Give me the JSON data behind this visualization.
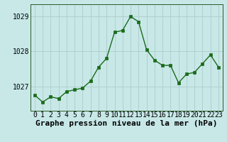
{
  "x": [
    0,
    1,
    2,
    3,
    4,
    5,
    6,
    7,
    8,
    9,
    10,
    11,
    12,
    13,
    14,
    15,
    16,
    17,
    18,
    19,
    20,
    21,
    22,
    23
  ],
  "y": [
    1026.75,
    1026.55,
    1026.7,
    1026.65,
    1026.85,
    1026.9,
    1026.95,
    1027.15,
    1027.55,
    1027.8,
    1028.55,
    1028.6,
    1029.0,
    1028.85,
    1028.05,
    1027.75,
    1027.6,
    1027.6,
    1027.1,
    1027.35,
    1027.4,
    1027.65,
    1027.9,
    1027.55
  ],
  "line_color": "#1a6b1a",
  "marker_color": "#1a6b1a",
  "bg_color": "#c8e8e8",
  "grid_color": "#b0d0d0",
  "xlabel": "Graphe pression niveau de la mer (hPa)",
  "xlabel_fontsize": 8,
  "tick_fontsize": 7,
  "yticks": [
    1027,
    1028,
    1029
  ],
  "ylim": [
    1026.3,
    1029.35
  ],
  "xlim": [
    -0.5,
    23.5
  ],
  "xticks": [
    0,
    1,
    2,
    3,
    4,
    5,
    6,
    7,
    8,
    9,
    10,
    11,
    12,
    13,
    14,
    15,
    16,
    17,
    18,
    19,
    20,
    21,
    22,
    23
  ],
  "xtick_labels": [
    "0",
    "1",
    "2",
    "3",
    "4",
    "5",
    "6",
    "7",
    "8",
    "9",
    "10",
    "11",
    "12",
    "13",
    "14",
    "15",
    "16",
    "17",
    "18",
    "19",
    "20",
    "21",
    "22",
    "23"
  ]
}
